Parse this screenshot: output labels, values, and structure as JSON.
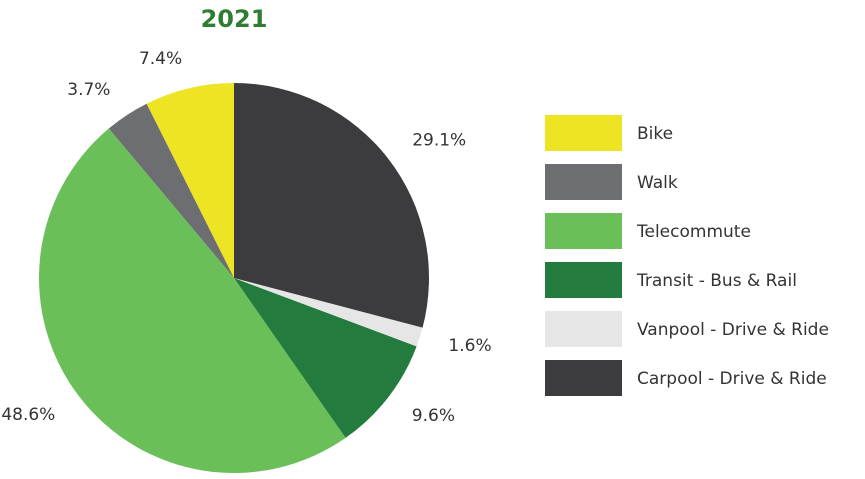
{
  "chart_data": {
    "type": "pie",
    "title": "2021",
    "categories": [
      "Bike",
      "Walk",
      "Telecommute",
      "Transit - Bus & Rail",
      "Vanpool - Drive & Ride",
      "Carpool - Drive & Ride"
    ],
    "values": [
      7.4,
      3.7,
      48.6,
      9.6,
      1.6,
      29.1
    ],
    "value_labels": [
      "7.4%",
      "3.7%",
      "48.6%",
      "9.6%",
      "1.6%",
      "29.1%"
    ],
    "colors": [
      "#ede523",
      "#6d6e71",
      "#6abf59",
      "#237c3e",
      "#e6e6e6",
      "#3c3c3e"
    ],
    "legend": "right"
  }
}
